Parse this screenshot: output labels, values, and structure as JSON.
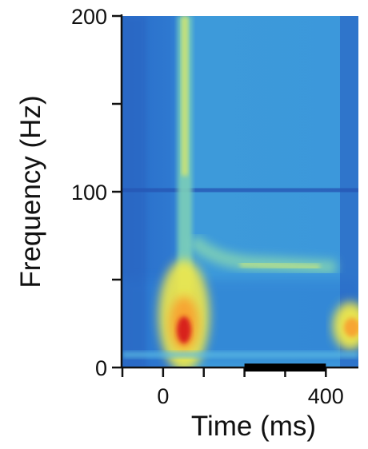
{
  "chart_data": {
    "type": "heatmap",
    "title": "",
    "xlabel": "Time (ms)",
    "ylabel": "Frequency (Hz)",
    "xlim": [
      -100,
      480
    ],
    "ylim": [
      0,
      200
    ],
    "x_ticks": [
      -100,
      0,
      100,
      200,
      300,
      400
    ],
    "x_tick_labels": [
      "",
      "0",
      "",
      "",
      "",
      "400"
    ],
    "y_ticks": [
      0,
      50,
      100,
      150,
      200
    ],
    "y_tick_labels": [
      "0",
      "",
      "100",
      "",
      "200"
    ],
    "stimulus_bar": {
      "x_start": 200,
      "x_end": 400
    },
    "colormap": [
      "#1f3d9a",
      "#2a74cf",
      "#4fb0e6",
      "#9fd8a8",
      "#f2e94a",
      "#f7a531",
      "#d8241c"
    ],
    "features": [
      {
        "name": "transient-broadband-onset",
        "time_ms": 55,
        "freq_range_hz": [
          5,
          200
        ],
        "peak_freq_hz": 20,
        "peak_level": "high"
      },
      {
        "name": "high-gamma-ridge",
        "time_range_ms": [
          90,
          470
        ],
        "freq_hz": 57,
        "level": "moderate"
      },
      {
        "name": "offset-low-frequency",
        "time_ms": 460,
        "freq_hz": 22,
        "level": "high"
      }
    ]
  }
}
